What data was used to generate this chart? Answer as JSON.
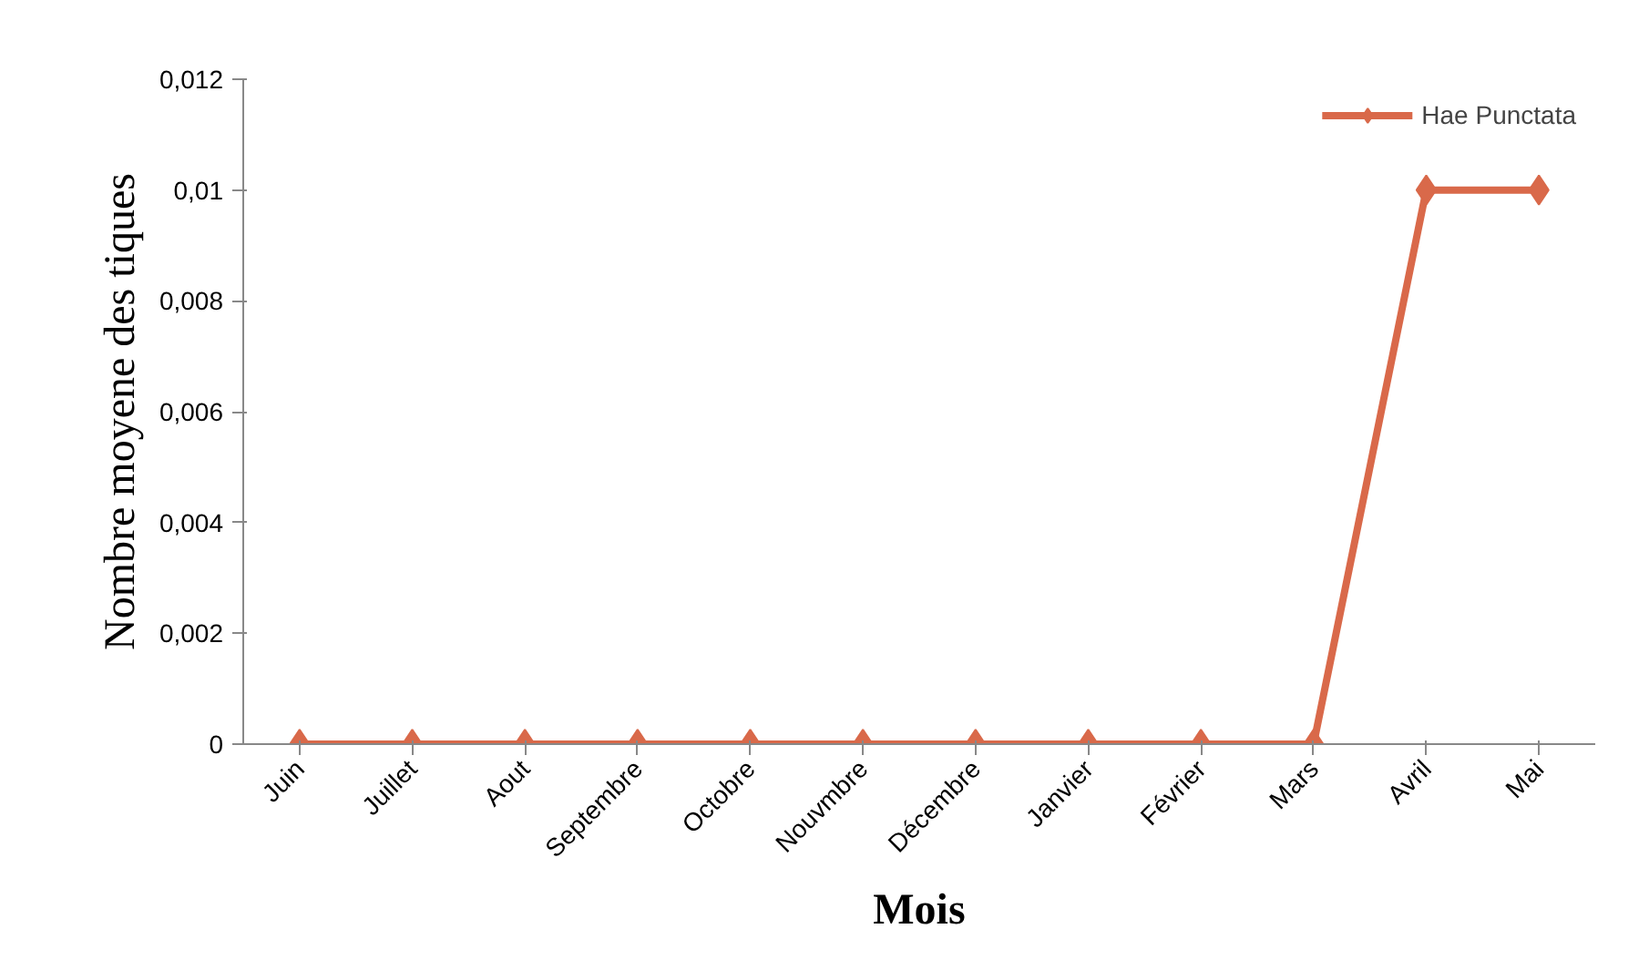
{
  "chart_data": {
    "type": "line",
    "xlabel": "Mois",
    "ylabel": "Nombre moyene des tiques",
    "categories": [
      "Juin",
      "Juillet",
      "Aout",
      "Septembre",
      "Octobre",
      "Nouvmbre",
      "Décembre",
      "Janvier",
      "Février",
      "Mars",
      "Avril",
      "Mai"
    ],
    "series": [
      {
        "name": "Hae Punctata",
        "color": "#d9694a",
        "values": [
          0,
          0,
          0,
          0,
          0,
          0,
          0,
          0,
          0,
          0,
          0.01,
          0.01
        ]
      }
    ],
    "ylim": [
      0,
      0.012
    ],
    "yticks": [
      0,
      {
        "value": 0.002,
        "label": "0,002"
      },
      {
        "value": 0.004,
        "label": "0,004"
      },
      {
        "value": 0.006,
        "label": "0,006"
      },
      {
        "value": 0.008,
        "label": "0,008"
      },
      {
        "value": 0.01,
        "label": "0,01"
      },
      {
        "value": 0.012,
        "label": "0,012"
      }
    ],
    "grid": false,
    "legend": "top right",
    "marker": "diamond",
    "line_style": "solid"
  }
}
